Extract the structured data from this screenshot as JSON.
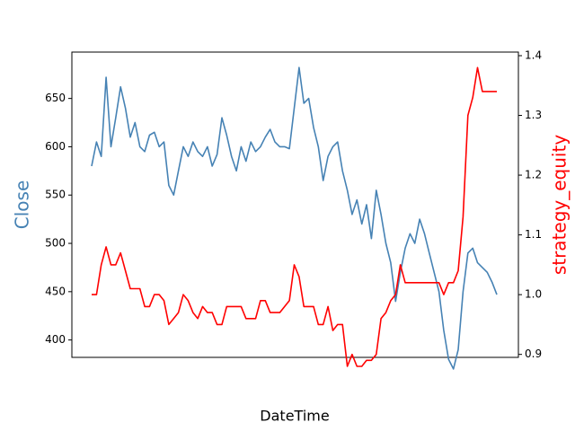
{
  "chart_data": {
    "type": "line",
    "xlabel": "DateTime",
    "ylabel": "Close",
    "y2label": "strategy_equity",
    "categories": [
      null,
      null,
      null,
      null,
      null,
      null,
      null,
      null,
      null,
      null,
      null,
      null,
      null,
      null,
      null,
      null,
      null,
      null,
      null,
      null,
      null,
      null,
      null,
      null,
      null,
      null,
      null,
      null,
      null,
      null,
      null,
      null,
      null,
      null,
      null,
      null,
      null,
      null,
      null,
      null,
      null,
      null,
      null,
      null,
      null,
      null,
      null,
      null,
      null,
      null,
      null,
      null,
      null,
      null,
      null,
      null,
      null,
      null,
      null,
      null,
      null,
      null,
      null,
      null,
      null,
      null,
      null,
      null,
      null,
      null,
      null,
      null,
      null,
      null,
      null,
      null,
      null,
      null,
      null,
      null,
      null,
      null,
      null,
      null,
      null
    ],
    "series": [
      {
        "name": "Close",
        "color": "#4682b4",
        "axis": "y",
        "values": [
          580,
          605,
          590,
          672,
          600,
          630,
          662,
          640,
          610,
          625,
          600,
          595,
          612,
          615,
          600,
          605,
          560,
          550,
          575,
          600,
          590,
          605,
          595,
          590,
          600,
          580,
          592,
          630,
          612,
          590,
          575,
          600,
          585,
          605,
          595,
          600,
          610,
          618,
          605,
          600,
          600,
          598,
          640,
          682,
          645,
          650,
          620,
          600,
          565,
          590,
          600,
          605,
          575,
          555,
          530,
          545,
          520,
          540,
          505,
          555,
          530,
          500,
          480,
          440,
          470,
          495,
          510,
          500,
          525,
          510,
          490,
          470,
          450,
          410,
          380,
          370,
          390,
          450,
          490,
          495,
          480,
          475,
          470,
          460,
          447
        ]
      },
      {
        "name": "strategy_equity",
        "color": "#ff0000",
        "axis": "y2",
        "values": [
          1.0,
          1.0,
          1.05,
          1.08,
          1.05,
          1.05,
          1.07,
          1.04,
          1.01,
          1.01,
          1.01,
          0.98,
          0.98,
          1.0,
          1.0,
          0.99,
          0.95,
          0.96,
          0.97,
          1.0,
          0.99,
          0.97,
          0.96,
          0.98,
          0.97,
          0.97,
          0.95,
          0.95,
          0.98,
          0.98,
          0.98,
          0.98,
          0.96,
          0.96,
          0.96,
          0.99,
          0.99,
          0.97,
          0.97,
          0.97,
          0.98,
          0.99,
          1.05,
          1.03,
          0.98,
          0.98,
          0.98,
          0.95,
          0.95,
          0.98,
          0.94,
          0.95,
          0.95,
          0.88,
          0.9,
          0.88,
          0.88,
          0.89,
          0.89,
          0.9,
          0.96,
          0.97,
          0.99,
          1.0,
          1.05,
          1.02,
          1.02,
          1.02,
          1.02,
          1.02,
          1.02,
          1.02,
          1.02,
          1.0,
          1.02,
          1.02,
          1.04,
          1.13,
          1.3,
          1.33,
          1.38,
          1.34,
          1.34,
          1.34,
          1.34
        ]
      }
    ],
    "ylim": [
      382,
      698
    ],
    "yticks": [
      400,
      450,
      500,
      550,
      600,
      650
    ],
    "y2lim": [
      0.895,
      1.406
    ],
    "y2ticks": [
      0.9,
      {
        "value": 1,
        "label": "1.0"
      },
      1.1,
      1.2,
      1.3,
      1.4
    ]
  }
}
